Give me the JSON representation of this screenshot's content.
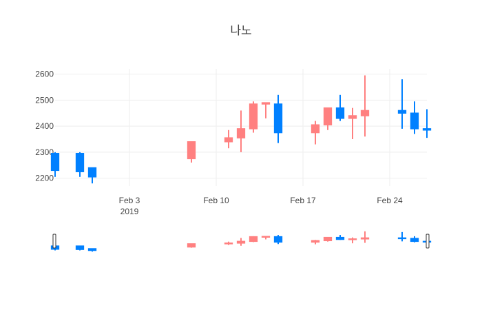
{
  "chart_data": {
    "type": "candlestick",
    "title": "나노",
    "xlabel": "",
    "ylabel": "",
    "ylim": [
      2170,
      2620
    ],
    "y_ticks": [
      2200,
      2300,
      2400,
      2500,
      2600
    ],
    "x_range": [
      "2019-01-28",
      "2019-02-27"
    ],
    "x_ticks": [
      {
        "date": "2019-02-03",
        "label": "Feb 3",
        "sublabel": "2019"
      },
      {
        "date": "2019-02-10",
        "label": "Feb 10",
        "sublabel": ""
      },
      {
        "date": "2019-02-17",
        "label": "Feb 17",
        "sublabel": ""
      },
      {
        "date": "2019-02-24",
        "label": "Feb 24",
        "sublabel": ""
      }
    ],
    "increasing_color": "#ff8080",
    "decreasing_color": "#0080ff",
    "grid": true,
    "rangeslider": true,
    "candles": [
      {
        "date": "2019-01-28",
        "open": 2295,
        "high": 2300,
        "low": 2205,
        "close": 2230
      },
      {
        "date": "2019-01-30",
        "open": 2295,
        "high": 2300,
        "low": 2205,
        "close": 2225
      },
      {
        "date": "2019-01-31",
        "open": 2240,
        "high": 2240,
        "low": 2180,
        "close": 2205
      },
      {
        "date": "2019-02-08",
        "open": 2275,
        "high": 2340,
        "low": 2260,
        "close": 2340
      },
      {
        "date": "2019-02-11",
        "open": 2340,
        "high": 2385,
        "low": 2315,
        "close": 2355
      },
      {
        "date": "2019-02-12",
        "open": 2355,
        "high": 2460,
        "low": 2300,
        "close": 2390
      },
      {
        "date": "2019-02-13",
        "open": 2390,
        "high": 2495,
        "low": 2375,
        "close": 2485
      },
      {
        "date": "2019-02-14",
        "open": 2485,
        "high": 2490,
        "low": 2430,
        "close": 2490
      },
      {
        "date": "2019-02-15",
        "open": 2485,
        "high": 2520,
        "low": 2335,
        "close": 2375
      },
      {
        "date": "2019-02-18",
        "open": 2375,
        "high": 2420,
        "low": 2330,
        "close": 2405
      },
      {
        "date": "2019-02-19",
        "open": 2405,
        "high": 2470,
        "low": 2385,
        "close": 2470
      },
      {
        "date": "2019-02-20",
        "open": 2470,
        "high": 2520,
        "low": 2420,
        "close": 2430
      },
      {
        "date": "2019-02-21",
        "open": 2430,
        "high": 2470,
        "low": 2350,
        "close": 2440
      },
      {
        "date": "2019-02-22",
        "open": 2440,
        "high": 2595,
        "low": 2360,
        "close": 2460
      },
      {
        "date": "2019-02-25",
        "open": 2460,
        "high": 2580,
        "low": 2390,
        "close": 2450
      },
      {
        "date": "2019-02-26",
        "open": 2450,
        "high": 2495,
        "low": 2370,
        "close": 2390
      },
      {
        "date": "2019-02-27",
        "open": 2390,
        "high": 2465,
        "low": 2355,
        "close": 2385
      }
    ]
  }
}
